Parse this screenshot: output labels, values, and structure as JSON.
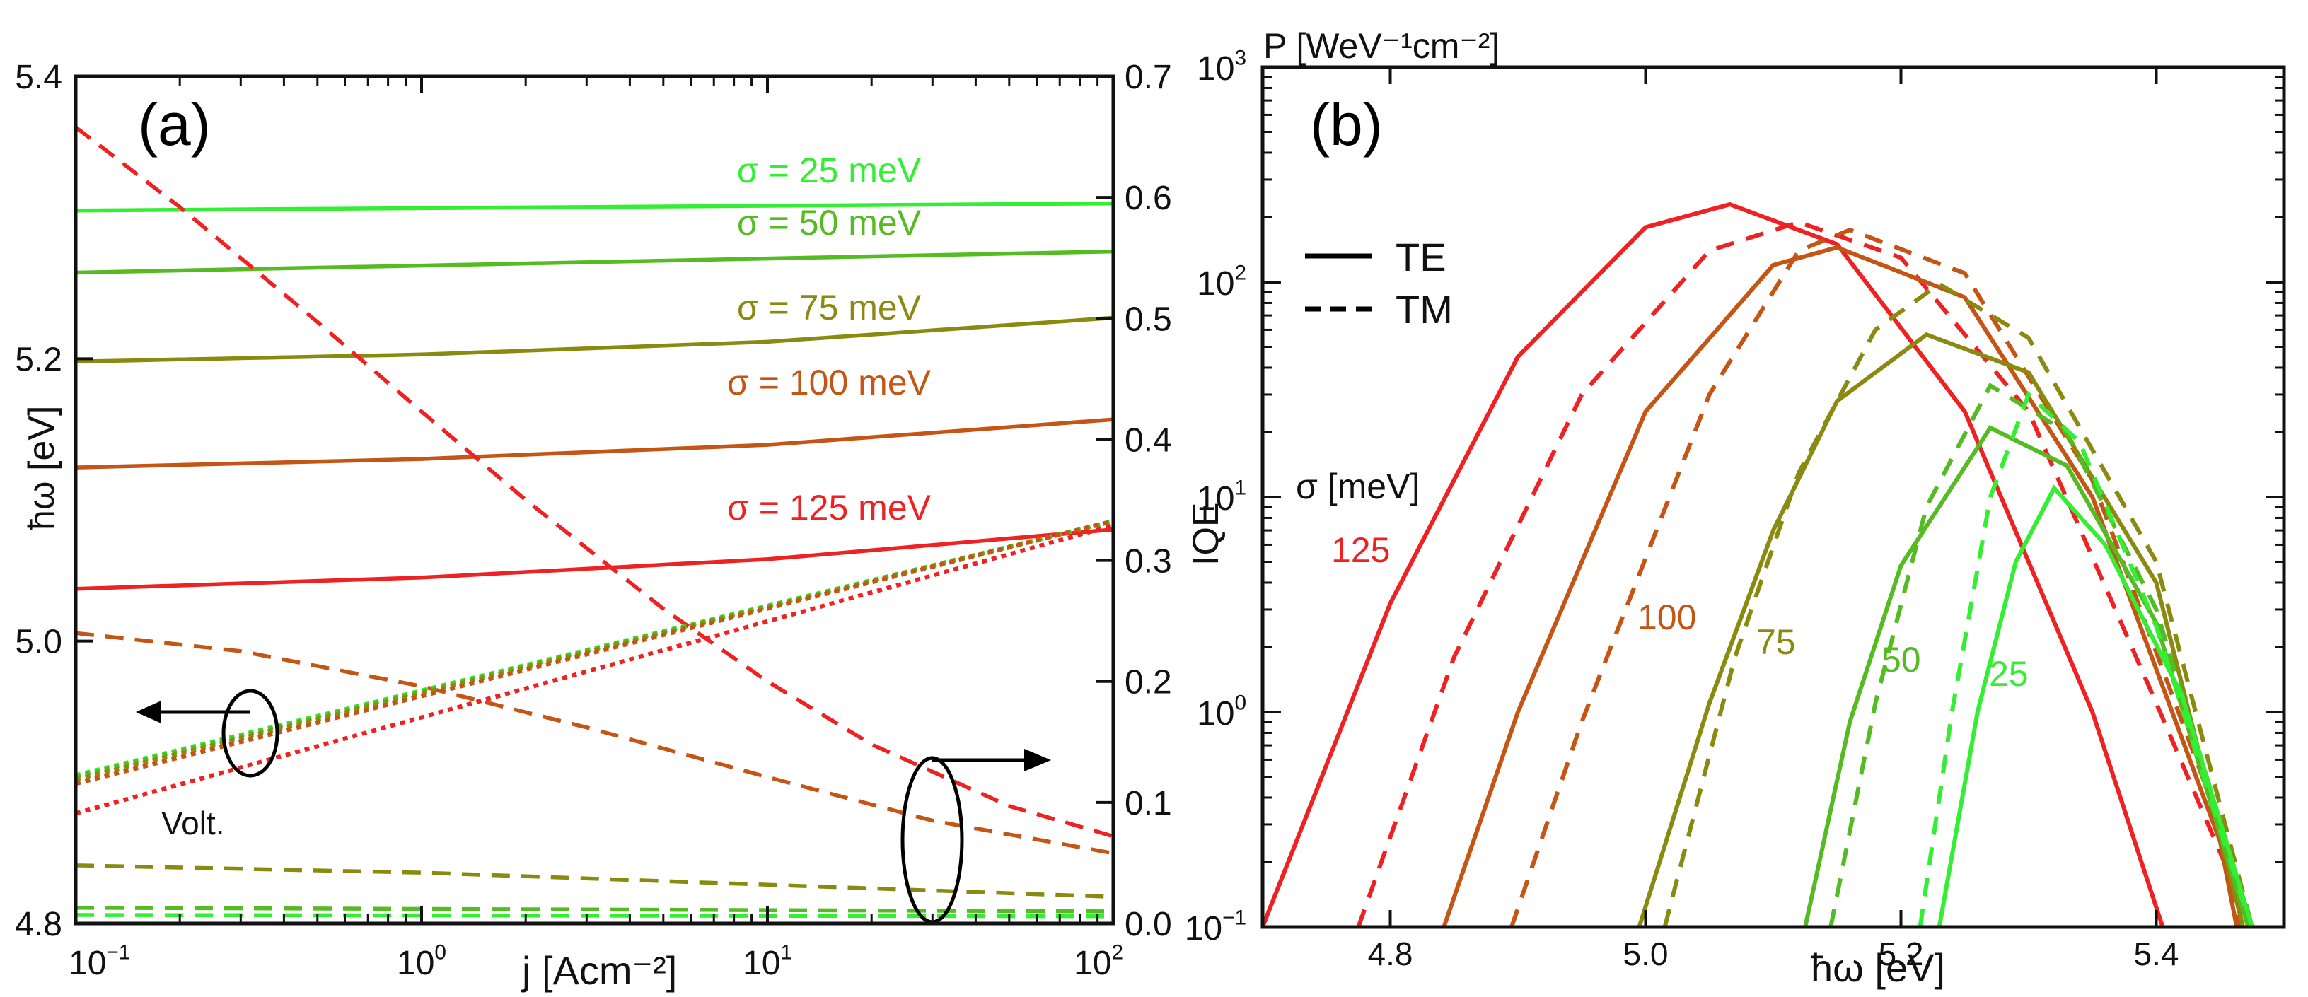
{
  "chart_data": [
    {
      "panel": "a",
      "type": "line",
      "panel_label": "(a)",
      "xlabel": "j [Acm⁻²]",
      "xscale": "log",
      "xlim": [
        0.1,
        100
      ],
      "x_ticks": [
        0.1,
        1,
        10,
        100
      ],
      "x_tick_labels": [
        [
          "10",
          "−1"
        ],
        [
          "10",
          "0"
        ],
        [
          "10",
          "1"
        ],
        [
          "10",
          "2"
        ]
      ],
      "ylabel_left": "ħω [eV]",
      "ylim_left": [
        4.8,
        5.4
      ],
      "y_left_ticks": [
        "4.8",
        "5.0",
        "5.2",
        "5.4"
      ],
      "ylabel_right": "IQE",
      "ylim_right": [
        0.0,
        0.7
      ],
      "y_right_ticks": [
        "0.0",
        "0.1",
        "0.2",
        "0.3",
        "0.4",
        "0.5",
        "0.6",
        "0.7"
      ],
      "annotations": {
        "voltage": "Volt."
      },
      "series": [
        {
          "name": "σ = 25 meV",
          "color": "#33ee33",
          "quantity": "photon energy",
          "axis": "left",
          "style": "solid",
          "x": [
            0.1,
            100
          ],
          "y": [
            5.305,
            5.31
          ]
        },
        {
          "name": "σ = 50 meV",
          "color": "#55bb22",
          "quantity": "photon energy",
          "axis": "left",
          "style": "solid",
          "x": [
            0.1,
            100
          ],
          "y": [
            5.261,
            5.276
          ]
        },
        {
          "name": "σ = 75 meV",
          "color": "#8a8a10",
          "quantity": "photon energy",
          "axis": "left",
          "style": "solid",
          "x": [
            0.1,
            1,
            10,
            100
          ],
          "y": [
            5.198,
            5.203,
            5.212,
            5.229
          ]
        },
        {
          "name": "σ = 100 meV",
          "color": "#c45514",
          "quantity": "photon energy",
          "axis": "left",
          "style": "solid",
          "x": [
            0.1,
            1,
            10,
            100
          ],
          "y": [
            5.123,
            5.129,
            5.139,
            5.157
          ]
        },
        {
          "name": "σ = 125 meV",
          "color": "#ee2222",
          "quantity": "photon energy",
          "axis": "left",
          "style": "solid",
          "x": [
            0.1,
            1,
            10,
            100
          ],
          "y": [
            5.037,
            5.045,
            5.058,
            5.079
          ]
        },
        {
          "name": "IQE σ = 125 meV",
          "color": "#ee2222",
          "quantity": "IQE",
          "axis": "right",
          "style": "dashed",
          "x": [
            0.1,
            0.2,
            0.5,
            1,
            2,
            5,
            10,
            20,
            50,
            100
          ],
          "y": [
            0.658,
            0.592,
            0.497,
            0.423,
            0.35,
            0.26,
            0.2,
            0.148,
            0.097,
            0.072
          ]
        },
        {
          "name": "IQE σ = 100 meV",
          "color": "#c45514",
          "quantity": "IQE",
          "axis": "right",
          "style": "dashed",
          "x": [
            0.1,
            0.3,
            1,
            3,
            10,
            30,
            100
          ],
          "y": [
            0.24,
            0.225,
            0.196,
            0.162,
            0.121,
            0.085,
            0.058
          ]
        },
        {
          "name": "IQE σ = 75 meV",
          "color": "#8a8a10",
          "quantity": "IQE",
          "axis": "right",
          "style": "dashed",
          "x": [
            0.1,
            1,
            10,
            100
          ],
          "y": [
            0.048,
            0.042,
            0.032,
            0.022
          ]
        },
        {
          "name": "IQE σ = 50 meV",
          "color": "#55bb22",
          "quantity": "IQE",
          "axis": "right",
          "style": "dashed",
          "x": [
            0.1,
            100
          ],
          "y": [
            0.013,
            0.01
          ]
        },
        {
          "name": "IQE σ = 25 meV",
          "color": "#33ee33",
          "quantity": "IQE",
          "axis": "right",
          "style": "dashed",
          "x": [
            0.1,
            100
          ],
          "y": [
            0.007,
            0.006
          ]
        },
        {
          "name": "Voltage σ = 25 meV",
          "color": "#33ee33",
          "quantity": "voltage",
          "axis": "left",
          "style": "dotted",
          "x": [
            0.1,
            100
          ],
          "y": [
            4.905,
            5.085
          ]
        },
        {
          "name": "Voltage σ = 50 meV",
          "color": "#55bb22",
          "quantity": "voltage",
          "axis": "left",
          "style": "dotted",
          "x": [
            0.1,
            100
          ],
          "y": [
            4.904,
            5.085
          ]
        },
        {
          "name": "Voltage σ = 75 meV",
          "color": "#8a8a10",
          "quantity": "voltage",
          "axis": "left",
          "style": "dotted",
          "x": [
            0.1,
            100
          ],
          "y": [
            4.902,
            5.085
          ]
        },
        {
          "name": "Voltage σ = 100 meV",
          "color": "#c45514",
          "quantity": "voltage",
          "axis": "left",
          "style": "dotted",
          "x": [
            0.1,
            100
          ],
          "y": [
            4.899,
            5.085
          ]
        },
        {
          "name": "Voltage σ = 125 meV",
          "color": "#ee2222",
          "quantity": "voltage",
          "axis": "left",
          "style": "dotted",
          "x": [
            0.1,
            100
          ],
          "y": [
            4.878,
            5.082
          ]
        }
      ]
    },
    {
      "panel": "b",
      "type": "line",
      "panel_label": "(b)",
      "ylabel": "P [WeV⁻¹cm⁻²]",
      "xlabel": "ħω [eV]",
      "yscale": "log",
      "xlim": [
        4.7,
        5.5
      ],
      "ylim": [
        0.1,
        1000
      ],
      "x_tick_labels": [
        "4.8",
        "5.0",
        "5.2",
        "5.4"
      ],
      "y_tick_labels": [
        [
          "10",
          "−1"
        ],
        [
          "10",
          "0"
        ],
        [
          "10",
          "1"
        ],
        [
          "10",
          "2"
        ],
        [
          "10",
          "3"
        ]
      ],
      "legend": {
        "placement": "top-left",
        "entries": [
          {
            "label": "TE",
            "style": "solid"
          },
          {
            "label": "TM",
            "style": "dashed"
          }
        ]
      },
      "sigma_title": "σ [meV]",
      "series": [
        {
          "sigma": "125",
          "color": "#ee2222",
          "TE": {
            "x": [
              4.7,
              4.8,
              4.9,
              5.0,
              5.066,
              5.15,
              5.25,
              5.35,
              5.405
            ],
            "y": [
              0.1,
              3.2,
              45,
              180,
              230,
              150,
              25,
              1.0,
              0.1
            ]
          },
          "TM": {
            "x": [
              4.775,
              4.85,
              4.95,
              5.05,
              5.12,
              5.2,
              5.3,
              5.4,
              5.475
            ],
            "y": [
              0.1,
              1.8,
              30,
              140,
              190,
              130,
              25,
              1.1,
              0.1
            ]
          }
        },
        {
          "sigma": "100",
          "color": "#c45514",
          "TE": {
            "x": [
              4.842,
              4.9,
              5.0,
              5.1,
              5.15,
              5.25,
              5.35,
              5.45,
              5.463
            ],
            "y": [
              0.1,
              1.0,
              25,
              120,
              145,
              85,
              10,
              0.25,
              0.1
            ]
          },
          "TM": {
            "x": [
              4.895,
              4.95,
              5.05,
              5.12,
              5.16,
              5.25,
              5.35,
              5.45,
              5.465
            ],
            "y": [
              0.1,
              0.9,
              30,
              140,
              175,
              110,
              12,
              0.3,
              0.1
            ]
          }
        },
        {
          "sigma": "75",
          "color": "#8a8a10",
          "TE": {
            "x": [
              4.995,
              5.05,
              5.1,
              5.15,
              5.22,
              5.3,
              5.4,
              5.468
            ],
            "y": [
              0.1,
              1.1,
              7,
              28,
              57,
              38,
              4,
              0.1
            ]
          },
          "TM": {
            "x": [
              5.015,
              5.07,
              5.12,
              5.18,
              5.23,
              5.3,
              5.4,
              5.475
            ],
            "y": [
              0.1,
              1.8,
              13,
              60,
              98,
              55,
              5,
              0.1
            ]
          }
        },
        {
          "sigma": "50",
          "color": "#55bb22",
          "TE": {
            "x": [
              5.125,
              5.16,
              5.2,
              5.27,
              5.33,
              5.4,
              5.472
            ],
            "y": [
              0.1,
              0.9,
              4.8,
              21,
              14,
              2.6,
              0.1
            ]
          },
          "TM": {
            "x": [
              5.145,
              5.18,
              5.22,
              5.27,
              5.33,
              5.4,
              5.475
            ],
            "y": [
              0.1,
              1.1,
              9,
              33,
              20,
              3,
              0.1
            ]
          }
        },
        {
          "sigma": "25",
          "color": "#33ee33",
          "TE": {
            "x": [
              5.23,
              5.26,
              5.29,
              5.32,
              5.36,
              5.42,
              5.475
            ],
            "y": [
              0.1,
              1.0,
              5,
              11,
              6,
              1.2,
              0.1
            ]
          },
          "TM": {
            "x": [
              5.215,
              5.24,
              5.27,
              5.3,
              5.34,
              5.4,
              5.47
            ],
            "y": [
              0.1,
              1.0,
              10,
              30,
              18,
              2.5,
              0.12
            ]
          }
        }
      ]
    }
  ]
}
